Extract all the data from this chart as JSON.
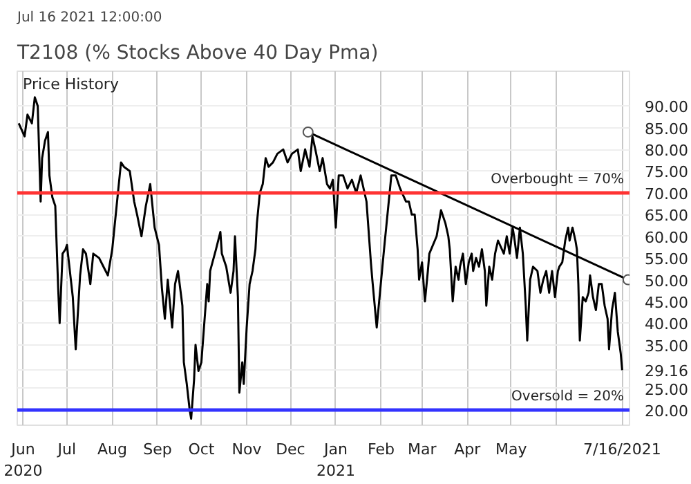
{
  "chart_data": {
    "type": "line",
    "title": "T2108 (% Stocks Above 40 Day Pma)",
    "subtitle": "Jul 16 2021 12:00:00",
    "series": [
      {
        "type": "line",
        "color": "#000000",
        "marker": "none",
        "x": [
          "2020-05-29",
          "2020-06-02",
          "2020-06-04",
          "2020-06-07",
          "2020-06-09",
          "2020-06-11",
          "2020-06-13",
          "2020-06-14",
          "2020-06-16",
          "2020-06-18",
          "2020-06-19",
          "2020-06-21",
          "2020-06-23",
          "2020-06-25",
          "2020-06-26",
          "2020-06-28",
          "2020-06-30",
          "2020-07-01",
          "2020-07-05",
          "2020-07-07",
          "2020-07-10",
          "2020-07-12",
          "2020-07-14",
          "2020-07-17",
          "2020-07-19",
          "2020-07-23",
          "2020-07-26",
          "2020-07-29",
          "2020-08-01",
          "2020-08-04",
          "2020-08-07",
          "2020-08-09",
          "2020-08-13",
          "2020-08-16",
          "2020-08-18",
          "2020-08-21",
          "2020-08-24",
          "2020-08-27",
          "2020-08-30",
          "2020-09-02",
          "2020-09-04",
          "2020-09-06",
          "2020-09-08",
          "2020-09-11",
          "2020-09-13",
          "2020-09-15",
          "2020-09-18",
          "2020-09-19",
          "2020-09-21",
          "2020-09-23",
          "2020-09-24",
          "2020-09-26",
          "2020-09-27",
          "2020-09-29",
          "2020-10-01",
          "2020-10-05",
          "2020-10-06",
          "2020-10-07",
          "2020-10-11",
          "2020-10-14",
          "2020-10-15",
          "2020-10-18",
          "2020-10-21",
          "2020-10-23",
          "2020-10-24",
          "2020-10-26",
          "2020-10-27",
          "2020-10-29",
          "2020-10-30",
          "2020-11-01",
          "2020-11-03",
          "2020-11-05",
          "2020-11-07",
          "2020-11-08",
          "2020-11-10",
          "2020-11-12",
          "2020-11-14",
          "2020-11-16",
          "2020-11-19",
          "2020-11-22",
          "2020-11-26",
          "2020-11-29",
          "2020-12-02",
          "2020-12-06",
          "2020-12-08",
          "2020-12-11",
          "2020-12-14",
          "2020-12-16",
          "2020-12-18",
          "2020-12-21",
          "2020-12-23",
          "2020-12-26",
          "2020-12-28",
          "2020-12-30",
          "2021-01-01",
          "2021-01-03",
          "2021-01-06",
          "2021-01-09",
          "2021-01-12",
          "2021-01-15",
          "2021-01-18",
          "2021-01-22",
          "2021-01-25",
          "2021-01-26",
          "2021-01-29",
          "2021-02-03",
          "2021-02-08",
          "2021-02-11",
          "2021-02-14",
          "2021-02-18",
          "2021-02-20",
          "2021-02-22",
          "2021-02-24",
          "2021-02-26",
          "2021-02-27",
          "2021-03-01",
          "2021-03-03",
          "2021-03-05",
          "2021-03-06",
          "2021-03-11",
          "2021-03-14",
          "2021-03-17",
          "2021-03-19",
          "2021-03-20",
          "2021-03-22",
          "2021-03-24",
          "2021-03-26",
          "2021-03-27",
          "2021-03-29",
          "2021-03-31",
          "2021-04-02",
          "2021-04-04",
          "2021-04-05",
          "2021-04-07",
          "2021-04-09",
          "2021-04-11",
          "2021-04-13",
          "2021-04-14",
          "2021-04-16",
          "2021-04-18",
          "2021-04-20",
          "2021-04-22",
          "2021-04-26",
          "2021-04-28",
          "2021-04-30",
          "2021-05-02",
          "2021-05-03",
          "2021-05-05",
          "2021-05-07",
          "2021-05-09",
          "2021-05-11",
          "2021-05-12",
          "2021-05-14",
          "2021-05-16",
          "2021-05-19",
          "2021-05-21",
          "2021-05-23",
          "2021-05-25",
          "2021-05-27",
          "2021-05-29",
          "2021-05-31",
          "2021-06-02",
          "2021-06-03",
          "2021-06-05",
          "2021-06-07",
          "2021-06-09",
          "2021-06-10",
          "2021-06-12",
          "2021-06-14",
          "2021-06-15",
          "2021-06-16",
          "2021-06-17",
          "2021-06-19",
          "2021-06-21",
          "2021-06-23",
          "2021-06-24",
          "2021-06-26",
          "2021-06-28",
          "2021-06-30",
          "2021-07-02",
          "2021-07-04",
          "2021-07-06",
          "2021-07-07",
          "2021-07-09",
          "2021-07-11",
          "2021-07-13",
          "2021-07-15",
          "2021-07-16"
        ],
        "values": [
          86,
          83,
          88,
          86,
          92,
          90,
          68,
          78,
          82,
          84,
          74,
          69,
          67,
          48,
          40,
          56,
          57,
          58,
          46,
          34,
          51,
          57,
          56,
          49,
          56,
          55,
          53,
          51,
          57,
          67,
          77,
          76,
          75,
          68,
          65,
          60,
          67,
          72,
          62,
          58,
          48,
          41,
          50,
          39,
          49,
          52,
          44,
          31,
          26,
          20,
          18,
          27,
          35,
          29,
          31,
          49,
          45,
          52,
          57,
          61,
          56,
          53,
          47,
          52,
          60,
          46,
          24,
          31,
          26,
          39,
          49,
          52,
          57,
          63,
          70,
          72,
          78,
          76,
          77,
          79,
          80,
          77,
          79,
          80,
          75,
          80,
          76,
          83,
          80,
          75,
          78,
          72,
          71,
          73,
          62,
          74,
          74,
          71,
          73,
          70,
          74,
          68,
          54,
          50,
          39,
          57,
          74,
          74,
          71,
          68,
          68,
          65,
          65,
          57,
          50,
          54,
          45,
          52,
          56,
          60,
          66,
          63,
          60,
          57,
          45,
          53,
          50,
          53,
          56,
          49,
          54,
          56,
          52,
          55,
          53,
          57,
          52,
          44,
          53,
          50,
          56,
          59,
          56,
          60,
          56,
          62,
          60,
          55,
          62,
          56,
          44,
          36,
          50,
          53,
          52,
          47,
          50,
          52,
          47,
          52,
          46,
          52,
          53,
          54,
          59,
          62,
          59,
          62,
          59,
          57,
          49,
          36,
          46,
          45,
          47,
          51,
          46,
          43,
          49,
          49,
          44,
          41,
          34,
          43,
          47,
          38,
          33,
          29.16
        ]
      },
      {
        "type": "line",
        "color": "#000000",
        "marker": "circle",
        "x": [
          "2020-12-13",
          "2021-07-20"
        ],
        "values": [
          84,
          50
        ]
      }
    ],
    "xlim": [
      "2020-05-28",
      "2021-07-21"
    ],
    "xticks": [
      {
        "value": "2020-06-01",
        "label": "Jun\n2020"
      },
      {
        "value": "2020-07-01",
        "label": "Jul"
      },
      {
        "value": "2020-08-01",
        "label": "Aug"
      },
      {
        "value": "2020-09-01",
        "label": "Sep"
      },
      {
        "value": "2020-10-01",
        "label": "Oct"
      },
      {
        "value": "2020-11-01",
        "label": "Nov"
      },
      {
        "value": "2020-12-01",
        "label": "Dec"
      },
      {
        "value": "2021-01-01",
        "label": "Jan\n2021"
      },
      {
        "value": "2021-02-01",
        "label": "Feb"
      },
      {
        "value": "2021-03-01",
        "label": "Mar"
      },
      {
        "value": "2021-04-01",
        "label": "Apr"
      },
      {
        "value": "2021-05-01",
        "label": "May"
      },
      {
        "value": "2021-06-01",
        "label": null
      },
      {
        "value": "2021-07-16",
        "label": "7/16/2021"
      }
    ],
    "ylim": [
      16.5,
      98
    ],
    "yticks": [
      {
        "value": 20,
        "label": "20.00"
      },
      {
        "value": 25,
        "label": "25.00"
      },
      {
        "value": 29.16,
        "label": "29.16"
      },
      {
        "value": 35,
        "label": "35.00"
      },
      {
        "value": 40,
        "label": "40.00"
      },
      {
        "value": 45,
        "label": "45.00"
      },
      {
        "value": 50,
        "label": "50.00"
      },
      {
        "value": 55,
        "label": "55.00"
      },
      {
        "value": 60,
        "label": "60.00"
      },
      {
        "value": 65,
        "label": "65.00"
      },
      {
        "value": 70,
        "label": "70.00"
      },
      {
        "value": 75,
        "label": "75.00"
      },
      {
        "value": 80,
        "label": "80.00"
      },
      {
        "value": 85,
        "label": "85.00"
      },
      {
        "value": 90,
        "label": "90.00"
      }
    ],
    "ref_lines": [
      {
        "axis": "y",
        "value": 70,
        "label": "Overbought = 70%",
        "color": "#ff3333"
      },
      {
        "axis": "y",
        "value": 20,
        "label": "Oversold = 20%",
        "color": "#3333ff"
      }
    ],
    "annotations": [
      "Price History"
    ],
    "grid": true,
    "line_style": "solid"
  }
}
